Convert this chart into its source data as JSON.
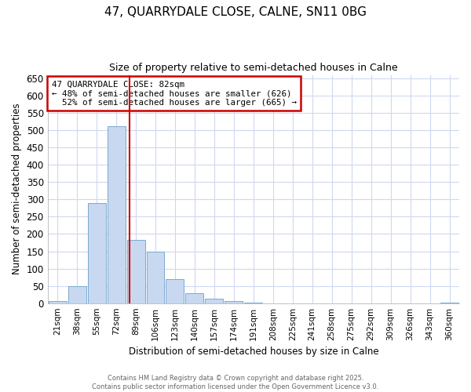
{
  "title1": "47, QUARRYDALE CLOSE, CALNE, SN11 0BG",
  "title2": "Size of property relative to semi-detached houses in Calne",
  "xlabel": "Distribution of semi-detached houses by size in Calne",
  "ylabel": "Number of semi-detached properties",
  "bar_labels": [
    "21sqm",
    "38sqm",
    "55sqm",
    "72sqm",
    "89sqm",
    "106sqm",
    "123sqm",
    "140sqm",
    "157sqm",
    "174sqm",
    "191sqm",
    "208sqm",
    "225sqm",
    "241sqm",
    "258sqm",
    "275sqm",
    "292sqm",
    "309sqm",
    "326sqm",
    "343sqm",
    "360sqm"
  ],
  "bar_values": [
    5,
    50,
    290,
    512,
    183,
    150,
    70,
    28,
    13,
    5,
    1,
    0,
    0,
    0,
    0,
    0,
    0,
    0,
    0,
    0,
    2
  ],
  "bar_color": "#c8d8f0",
  "bar_edge_color": "#7aabcf",
  "property_label": "47 QUARRYDALE CLOSE: 82sqm",
  "pct_smaller": 48,
  "count_smaller": 626,
  "pct_larger": 52,
  "count_larger": 665,
  "vline_x_index": 3.67,
  "ylim": [
    0,
    660
  ],
  "yticks": [
    0,
    50,
    100,
    150,
    200,
    250,
    300,
    350,
    400,
    450,
    500,
    550,
    600,
    650
  ],
  "annotation_box_color": "#cc0000",
  "bg_color": "#ffffff",
  "plot_bg_color": "#ffffff",
  "grid_color": "#d0d8f0",
  "footer1": "Contains HM Land Registry data © Crown copyright and database right 2025.",
  "footer2": "Contains public sector information licensed under the Open Government Licence v3.0."
}
